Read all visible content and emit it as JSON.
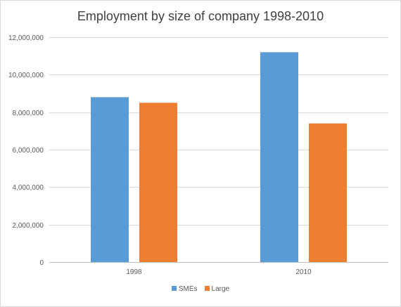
{
  "chart_data": {
    "type": "bar",
    "title": "Employment by size of company 1998-2010",
    "categories": [
      "1998",
      "2010"
    ],
    "series": [
      {
        "name": "SMEs",
        "values": [
          8800000,
          11200000
        ],
        "color": "#5b9bd5"
      },
      {
        "name": "Large",
        "values": [
          8500000,
          7400000
        ],
        "color": "#ed7d31"
      }
    ],
    "y_ticks": [
      "0",
      "2,000,000",
      "4,000,000",
      "6,000,000",
      "8,000,000",
      "10,000,000",
      "12,000,000"
    ],
    "ylim": [
      0,
      12000000
    ],
    "grid": true,
    "legend_position": "bottom"
  }
}
